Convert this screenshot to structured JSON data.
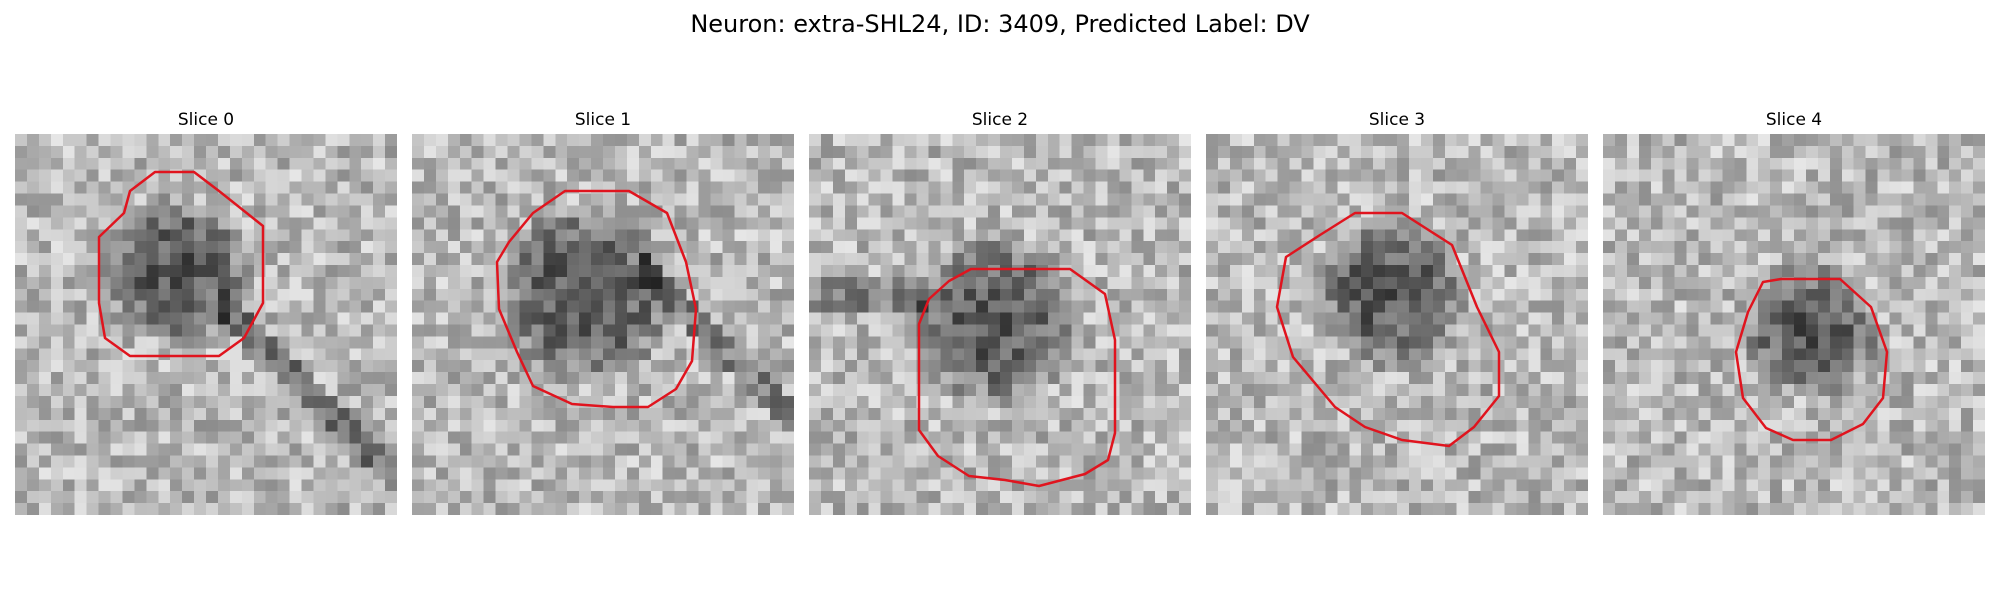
{
  "figure": {
    "title": "Neuron: extra-SHL24, ID: 3409, Predicted Label: DV"
  },
  "slices": [
    {
      "title": "Slice 0"
    },
    {
      "title": "Slice 1"
    },
    {
      "title": "Slice 2"
    },
    {
      "title": "Slice 3"
    },
    {
      "title": "Slice 4"
    }
  ],
  "colors": {
    "outline": "#e0141e",
    "background": "#ffffff",
    "text": "#000000"
  }
}
